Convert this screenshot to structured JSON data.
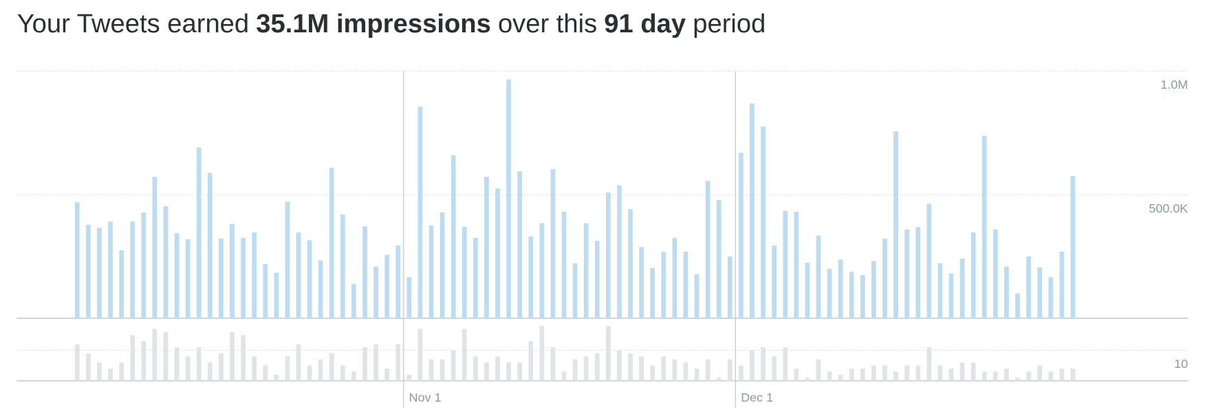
{
  "chart_data": [
    {
      "type": "bar",
      "title_segments": [
        {
          "text": "Your Tweets earned",
          "bold": false
        },
        {
          "text": "35.1M impressions",
          "bold": true
        },
        {
          "text": "over this",
          "bold": false
        },
        {
          "text": "91 day",
          "bold": true
        },
        {
          "text": "period",
          "bold": false
        }
      ],
      "categories": [
        null,
        null,
        null,
        null,
        null,
        null,
        null,
        null,
        null,
        null,
        null,
        null,
        null,
        null,
        null,
        null,
        null,
        null,
        null,
        null,
        null,
        null,
        null,
        null,
        null,
        null,
        null,
        null,
        null,
        null,
        "Nov 1",
        null,
        null,
        null,
        null,
        null,
        null,
        null,
        null,
        null,
        null,
        null,
        null,
        null,
        null,
        null,
        null,
        null,
        null,
        null,
        null,
        null,
        null,
        null,
        null,
        null,
        null,
        null,
        null,
        null,
        "Dec 1",
        null,
        null,
        null,
        null,
        null,
        null,
        null,
        null,
        null,
        null,
        null,
        null,
        null,
        null,
        null,
        null,
        null,
        null,
        null,
        null,
        null,
        null,
        null,
        null,
        null,
        null,
        null,
        null,
        null,
        null
      ],
      "values": [
        469000,
        378000,
        366000,
        391000,
        275000,
        391000,
        428000,
        572000,
        453000,
        344000,
        319000,
        691000,
        588000,
        322000,
        381000,
        325000,
        347000,
        219000,
        184000,
        472000,
        347000,
        316000,
        234000,
        609000,
        419000,
        138000,
        372000,
        209000,
        256000,
        294000,
        166000,
        856000,
        375000,
        428000,
        659000,
        369000,
        325000,
        572000,
        525000,
        966000,
        594000,
        331000,
        384000,
        603000,
        431000,
        222000,
        384000,
        313000,
        509000,
        538000,
        441000,
        288000,
        203000,
        269000,
        325000,
        269000,
        178000,
        556000,
        478000,
        250000,
        669000,
        869000,
        775000,
        294000,
        434000,
        431000,
        225000,
        334000,
        200000,
        238000,
        188000,
        175000,
        231000,
        322000,
        756000,
        359000,
        369000,
        463000,
        222000,
        181000,
        241000,
        347000,
        738000,
        359000,
        209000,
        100000,
        250000,
        206000,
        166000,
        269000,
        575000
      ],
      "color": "#bddcf2",
      "ylim": [
        0,
        1000000
      ],
      "yticks": [
        {
          "value": 500000,
          "label": "500.0K"
        },
        {
          "value": 1000000,
          "label": "1.0M"
        }
      ],
      "grid": true
    },
    {
      "type": "bar",
      "values": [
        12,
        9,
        6,
        4,
        6,
        15,
        13,
        17,
        16,
        11,
        8,
        11,
        6,
        9,
        16,
        15,
        8,
        5,
        2,
        8,
        12,
        5,
        7,
        9,
        5,
        3,
        11,
        12,
        4,
        12,
        2,
        17,
        7,
        7,
        10,
        17,
        8,
        6,
        8,
        6,
        6,
        13,
        18,
        11,
        3,
        7,
        8,
        9,
        18,
        10,
        9,
        8,
        5,
        8,
        7,
        6,
        4,
        7,
        1,
        7,
        5,
        10,
        11,
        8,
        11,
        4,
        1,
        7,
        3,
        2,
        4,
        4,
        5,
        5,
        3,
        5,
        5,
        11,
        5,
        4,
        6,
        6,
        3,
        3,
        4,
        1,
        3,
        5,
        3,
        4,
        4
      ],
      "color": "#e1e4e7",
      "ylim": [
        0,
        20
      ],
      "yticks": [
        10
      ],
      "grid": true
    }
  ]
}
